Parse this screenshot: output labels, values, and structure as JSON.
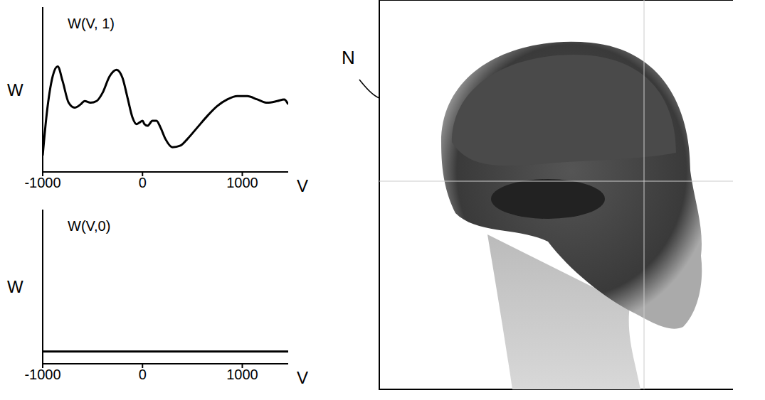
{
  "chart_data": [
    {
      "type": "line",
      "title": "W(V, 1)",
      "xlabel": "V",
      "ylabel": "W",
      "x": [
        -1000,
        -960,
        -900,
        -850,
        -800,
        -740,
        -680,
        -620,
        -580,
        -520,
        -460,
        -400,
        -330,
        -260,
        -200,
        -150,
        -100,
        -60,
        -30,
        0,
        20,
        50,
        100,
        140,
        180,
        230,
        300,
        380,
        450,
        550,
        650,
        750,
        850,
        950,
        1050,
        1150,
        1250,
        1350,
        1420,
        1460
      ],
      "values": [
        0.1,
        0.35,
        0.58,
        0.64,
        0.55,
        0.42,
        0.39,
        0.41,
        0.43,
        0.42,
        0.43,
        0.48,
        0.58,
        0.62,
        0.57,
        0.45,
        0.33,
        0.29,
        0.3,
        0.31,
        0.29,
        0.28,
        0.31,
        0.31,
        0.27,
        0.2,
        0.15,
        0.16,
        0.2,
        0.27,
        0.34,
        0.4,
        0.44,
        0.46,
        0.46,
        0.44,
        0.42,
        0.43,
        0.44,
        0.41
      ],
      "color": "#000000",
      "xlim": [
        -1000,
        1460
      ],
      "xticks": [
        -1000,
        0,
        1000
      ],
      "ylim": [
        0,
        1
      ],
      "tick_labels": "x"
    },
    {
      "type": "line",
      "title": "W(V,0)",
      "xlabel": "V",
      "ylabel": "W",
      "x": [
        -1000,
        1460
      ],
      "values": [
        0.08,
        0.08
      ],
      "color": "#000000",
      "xlim": [
        -1000,
        1460
      ],
      "xticks": [
        -1000,
        0,
        1000
      ],
      "ylim": [
        0,
        1
      ],
      "tick_labels": "x"
    }
  ],
  "figure": {
    "label": "N"
  }
}
